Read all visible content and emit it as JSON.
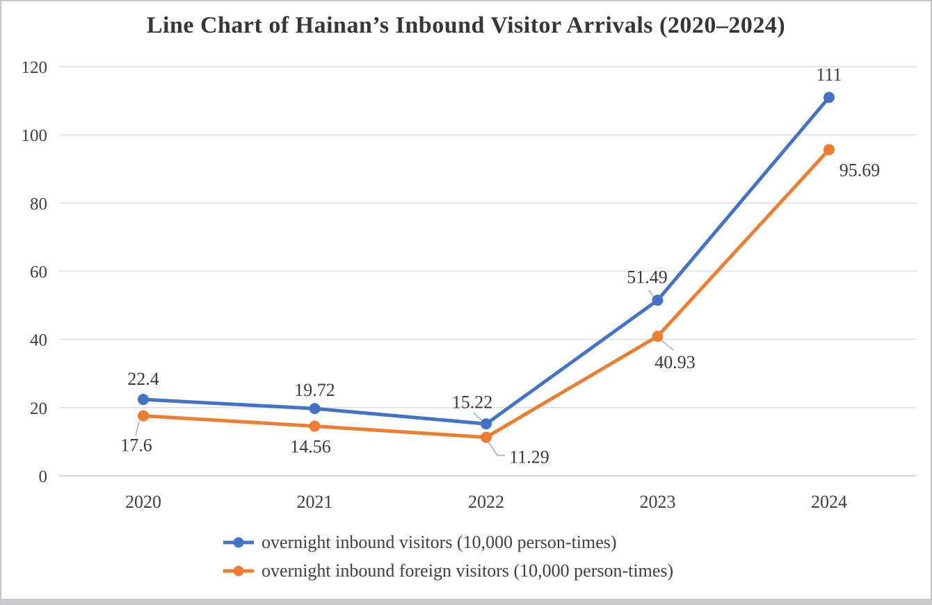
{
  "window": {
    "background": "#ffffff",
    "border_color": "#c8c8c8",
    "bottom_bar_color": "#c9ccce"
  },
  "chart_data": {
    "type": "line",
    "title": "Line Chart of Hainan’s Inbound Visitor Arrivals (2020–2024)",
    "categories": [
      "2020",
      "2021",
      "2022",
      "2023",
      "2024"
    ],
    "series": [
      {
        "name": "overnight inbound visitors (10,000 person-times)",
        "color": "#4472C4",
        "values": [
          22.4,
          19.72,
          15.22,
          51.49,
          111
        ],
        "point_labels": [
          "22.4",
          "19.72",
          "15.22",
          "51.49",
          "111"
        ]
      },
      {
        "name": "overnight inbound foreign visitors (10,000 person-times)",
        "color": "#ED7D31",
        "values": [
          17.6,
          14.56,
          11.29,
          40.93,
          95.69
        ],
        "point_labels": [
          "17.6",
          "14.56",
          "11.29",
          "40.93",
          "95.69"
        ]
      }
    ],
    "xlabel": "",
    "ylabel": "",
    "y_ticks": [
      0,
      20,
      40,
      60,
      80,
      100,
      120
    ],
    "ylim": [
      0,
      120
    ],
    "grid": "horizontal",
    "legend_position": "bottom",
    "marker": "circle",
    "colors": {
      "gridline": "#e4e4e4",
      "axis_line": "#d8d8d8",
      "tick_text": "#3f3f3f",
      "data_label_text": "#3a3a3a",
      "leader_line": "#aeaeae"
    }
  }
}
